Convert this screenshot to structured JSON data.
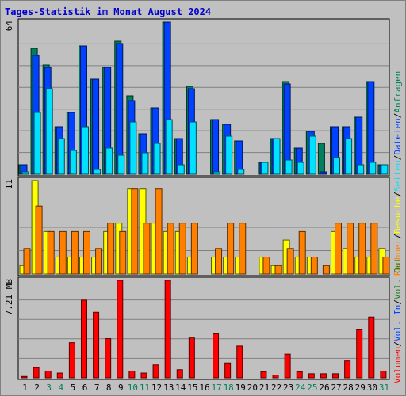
{
  "title": "Tages-Statistik im Monat August 2024",
  "right_legend": {
    "top": [
      {
        "text": "Anfragen",
        "color": "#00805c"
      },
      {
        "text": "Dateien",
        "color": "#0042ff"
      },
      {
        "text": "Seiten",
        "color": "#00e0ff"
      },
      {
        "text": "Besuche",
        "color": "#ffff00"
      },
      {
        "text": "Rechner",
        "color": "#ff8000"
      }
    ],
    "bottom": [
      {
        "text": "Vol. Out",
        "color": "#208020"
      },
      {
        "text": "Vol. In",
        "color": "#0042ff"
      },
      {
        "text": "Volumen",
        "color": "#ff0000"
      }
    ],
    "separator": "/"
  },
  "colors": {
    "hits": "#00805c",
    "files": "#0042ff",
    "pages": "#00e0ff",
    "visits": "#ffff00",
    "sites": "#ff8000",
    "volume": "#ff0000",
    "weekday_label": "#000000",
    "weekend_label": "#00805c",
    "background": "#c0c0c0",
    "plot_bg": "#c0c0c0"
  },
  "chart_data": [
    {
      "type": "bar",
      "panel": "hits-files-pages",
      "ymax_label": "64",
      "ylim": [
        0,
        64
      ],
      "categories": [
        "1",
        "2",
        "3",
        "4",
        "5",
        "6",
        "7",
        "8",
        "9",
        "10",
        "11",
        "12",
        "13",
        "14",
        "15",
        "16",
        "17",
        "18",
        "19",
        "20",
        "21",
        "22",
        "23",
        "24",
        "25",
        "26",
        "27",
        "28",
        "29",
        "30",
        "31"
      ],
      "weekend": [
        3,
        4,
        10,
        11,
        17,
        18,
        24,
        25,
        31
      ],
      "series": [
        {
          "name": "Anfragen",
          "values": [
            4,
            53,
            46,
            20,
            26,
            54,
            40,
            45,
            56,
            33,
            17,
            28,
            64,
            15,
            37,
            0,
            23,
            21,
            14,
            0,
            5,
            15,
            39,
            11,
            18,
            13,
            20,
            20,
            24,
            39,
            4
          ]
        },
        {
          "name": "Dateien",
          "values": [
            4,
            50,
            45,
            20,
            26,
            54,
            40,
            45,
            55,
            31,
            17,
            28,
            64,
            15,
            36,
            0,
            23,
            21,
            14,
            0,
            5,
            15,
            38,
            11,
            18,
            1,
            20,
            20,
            24,
            39,
            4
          ]
        },
        {
          "name": "Seiten",
          "values": [
            1,
            26,
            36,
            15,
            10,
            20,
            2,
            11,
            8,
            22,
            9,
            13,
            23,
            4,
            22,
            0,
            1,
            16,
            2,
            0,
            5,
            15,
            6,
            5,
            16,
            0,
            7,
            15,
            4,
            5,
            4
          ]
        }
      ]
    },
    {
      "type": "bar",
      "panel": "visits-sites",
      "ymax_label": "11",
      "ylim": [
        0,
        11
      ],
      "categories": [
        "1",
        "2",
        "3",
        "4",
        "5",
        "6",
        "7",
        "8",
        "9",
        "10",
        "11",
        "12",
        "13",
        "14",
        "15",
        "16",
        "17",
        "18",
        "19",
        "20",
        "21",
        "22",
        "23",
        "24",
        "25",
        "26",
        "27",
        "28",
        "29",
        "30",
        "31"
      ],
      "series": [
        {
          "name": "Besuche",
          "values": [
            1,
            11,
            5,
            2,
            2,
            2,
            2,
            5,
            6,
            10,
            10,
            6,
            5,
            5,
            2,
            0,
            2,
            2,
            2,
            0,
            2,
            1,
            4,
            2,
            2,
            0,
            5,
            3,
            2,
            2,
            3
          ]
        },
        {
          "name": "Rechner",
          "values": [
            3,
            8,
            5,
            5,
            5,
            5,
            3,
            6,
            5,
            10,
            6,
            10,
            6,
            6,
            6,
            0,
            3,
            6,
            6,
            0,
            2,
            1,
            3,
            5,
            2,
            1,
            6,
            6,
            6,
            6,
            2
          ]
        }
      ]
    },
    {
      "type": "bar",
      "panel": "volume",
      "ymax_label": "7.21 MB",
      "ylim": [
        0,
        7.21
      ],
      "categories": [
        "1",
        "2",
        "3",
        "4",
        "5",
        "6",
        "7",
        "8",
        "9",
        "10",
        "11",
        "12",
        "13",
        "14",
        "15",
        "16",
        "17",
        "18",
        "19",
        "20",
        "21",
        "22",
        "23",
        "24",
        "25",
        "26",
        "27",
        "28",
        "29",
        "30",
        "31"
      ],
      "series": [
        {
          "name": "Volumen",
          "values": [
            0.1,
            0.75,
            0.5,
            0.35,
            2.6,
            5.75,
            4.85,
            2.9,
            7.21,
            0.5,
            0.35,
            0.95,
            7.21,
            0.6,
            2.95,
            0,
            3.25,
            1.1,
            2.35,
            0,
            0.45,
            0.2,
            1.75,
            0.45,
            0.3,
            0.3,
            0.3,
            1.25,
            3.55,
            4.5,
            0.5
          ]
        }
      ]
    }
  ]
}
